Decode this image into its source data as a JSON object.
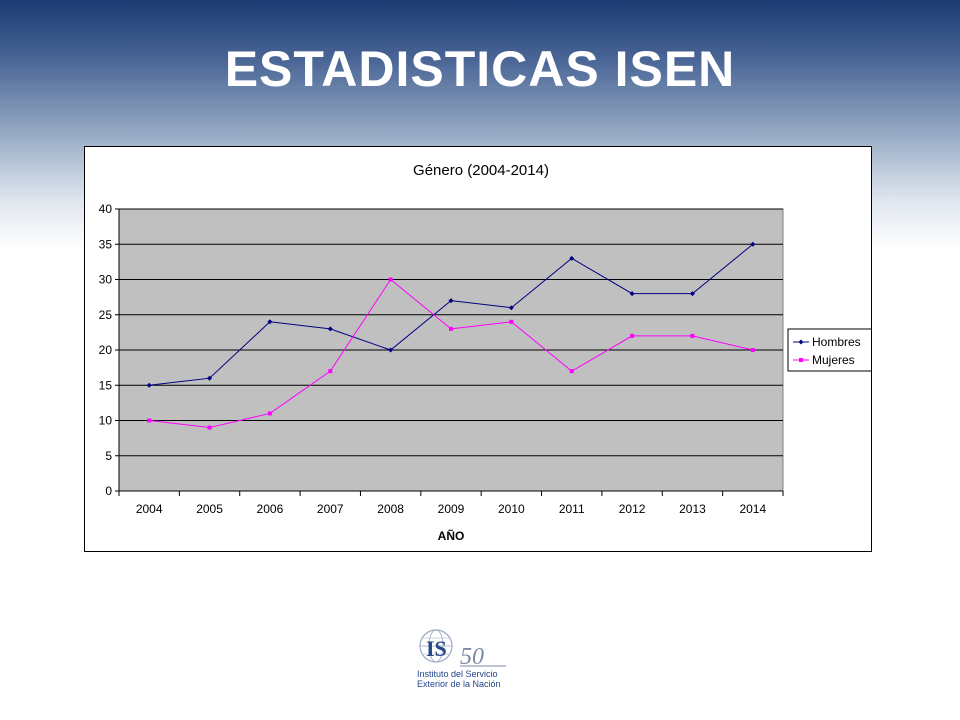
{
  "slide": {
    "title": "ESTADISTICAS ISEN"
  },
  "logo": {
    "mark": "ISEN",
    "anniversary": "50",
    "line1": "Instituto del Servicio",
    "line2": "Exterior de la Nación",
    "icon": "globe-logo-icon"
  },
  "chart_data": {
    "type": "line",
    "title": "Género (2004-2014)",
    "xlabel": "AÑO",
    "ylabel": "",
    "categories": [
      "2004",
      "2005",
      "2006",
      "2007",
      "2008",
      "2009",
      "2010",
      "2011",
      "2012",
      "2013",
      "2014"
    ],
    "ylim": [
      0,
      40
    ],
    "yticks": [
      "0",
      "5",
      "10",
      "15",
      "20",
      "25",
      "30",
      "35",
      "40"
    ],
    "grid": true,
    "plot_background": "#c0c0c0",
    "legend_position": "right",
    "series": [
      {
        "name": "Hombres",
        "color": "#000080",
        "marker": "diamond",
        "values": [
          15,
          16,
          24,
          23,
          20,
          27,
          26,
          33,
          28,
          28,
          35
        ]
      },
      {
        "name": "Mujeres",
        "color": "#ff00ff",
        "marker": "square",
        "values": [
          10,
          9,
          11,
          17,
          30,
          23,
          24,
          17,
          22,
          22,
          20
        ]
      }
    ]
  }
}
